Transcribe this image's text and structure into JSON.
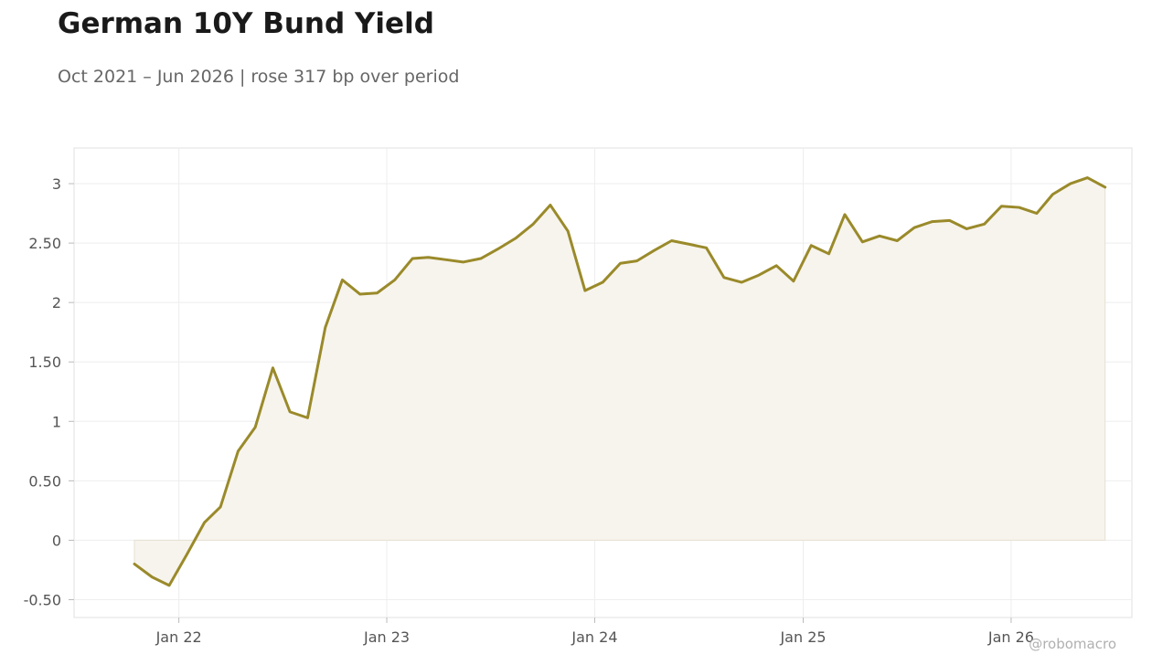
{
  "chart_data": {
    "type": "area",
    "title": "German 10Y Bund Yield",
    "subtitle": "Oct 2021 – Jun 2026 | rose 317 bp over period",
    "xlabel": "",
    "ylabel": "",
    "ylim": [
      -0.65,
      3.3
    ],
    "yticks": [
      -0.5,
      0,
      0.5,
      1,
      1.5,
      2,
      2.5,
      3
    ],
    "ytick_labels": [
      "-0.50",
      "0",
      "0.50",
      "1",
      "1.50",
      "2",
      "2.50",
      "3"
    ],
    "xlim": [
      "2021-07-01",
      "2026-08-01"
    ],
    "xticks": [
      "2022-01-01",
      "2023-01-01",
      "2024-01-01",
      "2025-01-01",
      "2026-01-01"
    ],
    "xtick_labels": [
      "Jan 22",
      "Jan 23",
      "Jan 24",
      "Jan 25",
      "Jan 26"
    ],
    "grid": true,
    "line_color": "#9a8a2a",
    "fill_color": "#f7f4ee",
    "series": [
      {
        "x": [
          "2021-10",
          "2021-11",
          "2021-12",
          "2022-01",
          "2022-02",
          "2022-03",
          "2022-04",
          "2022-05",
          "2022-06",
          "2022-07",
          "2022-08",
          "2022-09",
          "2022-10",
          "2022-11",
          "2022-12",
          "2023-01",
          "2023-02",
          "2023-03",
          "2023-04",
          "2023-05",
          "2023-06",
          "2023-07",
          "2023-08",
          "2023-09",
          "2023-10",
          "2023-11",
          "2023-12",
          "2024-01",
          "2024-02",
          "2024-03",
          "2024-04",
          "2024-05",
          "2024-06",
          "2024-07",
          "2024-08",
          "2024-09",
          "2024-10",
          "2024-11",
          "2024-12",
          "2025-01",
          "2025-02",
          "2025-03",
          "2025-04",
          "2025-05",
          "2025-06",
          "2025-07",
          "2025-08",
          "2025-09",
          "2025-10",
          "2025-11",
          "2025-12",
          "2026-01",
          "2026-02",
          "2026-03",
          "2026-04",
          "2026-05",
          "2026-06"
        ],
        "values": [
          -0.2,
          -0.31,
          -0.38,
          -0.12,
          0.15,
          0.28,
          0.75,
          0.95,
          1.45,
          1.08,
          1.03,
          1.79,
          2.19,
          2.07,
          2.08,
          2.19,
          2.37,
          2.38,
          2.36,
          2.34,
          2.37,
          2.45,
          2.54,
          2.66,
          2.82,
          2.6,
          2.1,
          2.17,
          2.33,
          2.35,
          2.44,
          2.52,
          2.49,
          2.46,
          2.21,
          2.17,
          2.23,
          2.31,
          2.18,
          2.48,
          2.41,
          2.74,
          2.51,
          2.56,
          2.52,
          2.63,
          2.68,
          2.69,
          2.62,
          2.66,
          2.81,
          2.8,
          2.75,
          2.91,
          3.0,
          3.05,
          2.97
        ]
      }
    ]
  },
  "watermark": "@robomacro"
}
